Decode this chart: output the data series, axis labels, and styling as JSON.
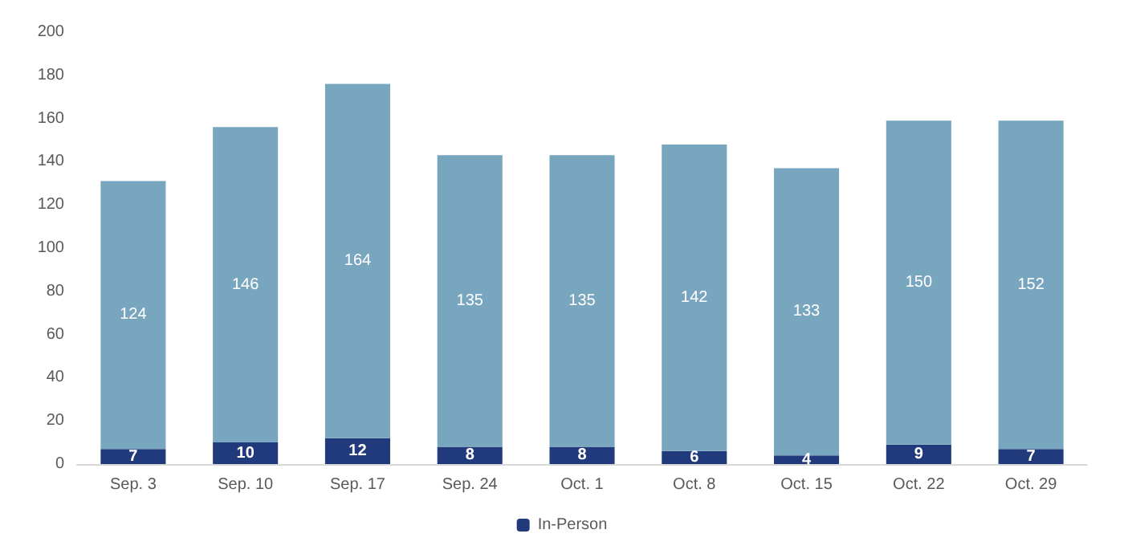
{
  "chart_data": {
    "type": "bar",
    "stacked": true,
    "categories": [
      "Sep. 3",
      "Sep. 10",
      "Sep. 17",
      "Sep. 24",
      "Oct. 1",
      "Oct. 8",
      "Oct. 15",
      "Oct. 22",
      "Oct. 29"
    ],
    "series": [
      {
        "name": "In-Person",
        "color": "#203a7c",
        "values": [
          7,
          10,
          12,
          8,
          8,
          6,
          4,
          9,
          7
        ]
      },
      {
        "color": "#78a6bf",
        "values": [
          124,
          146,
          164,
          135,
          135,
          142,
          133,
          150,
          152
        ]
      }
    ],
    "ylim": [
      0,
      200
    ],
    "yticks": [
      0,
      20,
      40,
      60,
      80,
      100,
      120,
      140,
      160,
      180,
      200
    ],
    "grid": false,
    "legend": "bottom",
    "data_labels": true
  }
}
